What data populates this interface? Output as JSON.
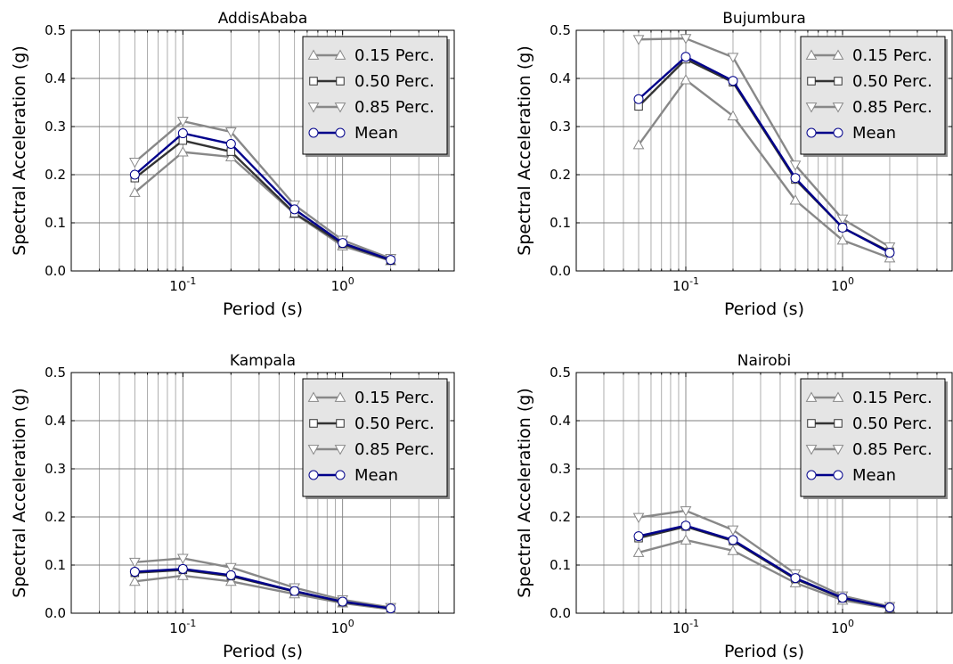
{
  "chart_data": [
    {
      "type": "line",
      "title": "AddisAbaba",
      "xlabel": "Period (s)",
      "ylabel": "Spectral Acceleration (g)",
      "xscale": "log",
      "xlim": [
        0.02,
        5
      ],
      "ylim": [
        0,
        0.5
      ],
      "yticks": [
        "0.0",
        "0.1",
        "0.2",
        "0.3",
        "0.4",
        "0.5"
      ],
      "xticks": [
        {
          "base": "10",
          "exp": "-1",
          "value": 0.1
        },
        {
          "base": "10",
          "exp": "0",
          "value": 1
        }
      ],
      "grid": true,
      "legend": "top-right",
      "x": [
        0.05,
        0.1,
        0.2,
        0.5,
        1.0,
        2.0
      ],
      "series": [
        {
          "name": "0.15 Perc.",
          "marker": "triangle-up",
          "color": "#888888",
          "values": [
            0.163,
            0.247,
            0.237,
            0.119,
            0.052,
            0.021
          ]
        },
        {
          "name": "0.50 Perc.",
          "marker": "square",
          "color": "#333333",
          "values": [
            0.193,
            0.271,
            0.248,
            0.12,
            0.056,
            0.022
          ]
        },
        {
          "name": "0.85 Perc.",
          "marker": "triangle-down",
          "color": "#888888",
          "values": [
            0.226,
            0.311,
            0.289,
            0.137,
            0.064,
            0.026
          ]
        },
        {
          "name": "Mean",
          "marker": "circle",
          "color": "#00008b",
          "values": [
            0.2,
            0.286,
            0.264,
            0.128,
            0.058,
            0.023
          ]
        }
      ]
    },
    {
      "type": "line",
      "title": "Bujumbura",
      "xlabel": "Period (s)",
      "ylabel": "Spectral Acceleration (g)",
      "xscale": "log",
      "xlim": [
        0.02,
        5
      ],
      "ylim": [
        0,
        0.5
      ],
      "yticks": [
        "0.0",
        "0.1",
        "0.2",
        "0.3",
        "0.4",
        "0.5"
      ],
      "xticks": [
        {
          "base": "10",
          "exp": "-1",
          "value": 0.1
        },
        {
          "base": "10",
          "exp": "0",
          "value": 1
        }
      ],
      "grid": true,
      "legend": "top-right",
      "x": [
        0.05,
        0.1,
        0.2,
        0.5,
        1.0,
        2.0
      ],
      "series": [
        {
          "name": "0.15 Perc.",
          "marker": "triangle-up",
          "color": "#888888",
          "values": [
            0.262,
            0.397,
            0.322,
            0.147,
            0.064,
            0.027
          ]
        },
        {
          "name": "0.50 Perc.",
          "marker": "square",
          "color": "#333333",
          "values": [
            0.342,
            0.44,
            0.392,
            0.19,
            0.09,
            0.04
          ]
        },
        {
          "name": "0.85 Perc.",
          "marker": "triangle-down",
          "color": "#888888",
          "values": [
            0.481,
            0.483,
            0.444,
            0.22,
            0.108,
            0.05
          ]
        },
        {
          "name": "Mean",
          "marker": "circle",
          "color": "#00008b",
          "values": [
            0.357,
            0.445,
            0.395,
            0.193,
            0.09,
            0.038
          ]
        }
      ]
    },
    {
      "type": "line",
      "title": "Kampala",
      "xlabel": "Period (s)",
      "ylabel": "Spectral Acceleration (g)",
      "xscale": "log",
      "xlim": [
        0.02,
        5
      ],
      "ylim": [
        0,
        0.5
      ],
      "yticks": [
        "0.0",
        "0.1",
        "0.2",
        "0.3",
        "0.4",
        "0.5"
      ],
      "xticks": [
        {
          "base": "10",
          "exp": "-1",
          "value": 0.1
        },
        {
          "base": "10",
          "exp": "0",
          "value": 1
        }
      ],
      "grid": true,
      "legend": "top-right",
      "x": [
        0.05,
        0.1,
        0.2,
        0.5,
        1.0,
        2.0
      ],
      "series": [
        {
          "name": "0.15 Perc.",
          "marker": "triangle-up",
          "color": "#888888",
          "values": [
            0.066,
            0.078,
            0.066,
            0.04,
            0.021,
            0.008
          ]
        },
        {
          "name": "0.50 Perc.",
          "marker": "square",
          "color": "#333333",
          "values": [
            0.084,
            0.09,
            0.077,
            0.045,
            0.023,
            0.01
          ]
        },
        {
          "name": "0.85 Perc.",
          "marker": "triangle-down",
          "color": "#888888",
          "values": [
            0.106,
            0.114,
            0.095,
            0.053,
            0.028,
            0.012
          ]
        },
        {
          "name": "Mean",
          "marker": "circle",
          "color": "#00008b",
          "values": [
            0.086,
            0.092,
            0.079,
            0.046,
            0.024,
            0.01
          ]
        }
      ]
    },
    {
      "type": "line",
      "title": "Nairobi",
      "xlabel": "Period (s)",
      "ylabel": "Spectral Acceleration (g)",
      "xscale": "log",
      "xlim": [
        0.02,
        5
      ],
      "ylim": [
        0,
        0.5
      ],
      "yticks": [
        "0.0",
        "0.1",
        "0.2",
        "0.3",
        "0.4",
        "0.5"
      ],
      "xticks": [
        {
          "base": "10",
          "exp": "-1",
          "value": 0.1
        },
        {
          "base": "10",
          "exp": "0",
          "value": 1
        }
      ],
      "grid": true,
      "legend": "top-right",
      "x": [
        0.05,
        0.1,
        0.2,
        0.5,
        1.0,
        2.0
      ],
      "series": [
        {
          "name": "0.15 Perc.",
          "marker": "triangle-up",
          "color": "#888888",
          "values": [
            0.126,
            0.152,
            0.13,
            0.063,
            0.027,
            0.01
          ]
        },
        {
          "name": "0.50 Perc.",
          "marker": "square",
          "color": "#333333",
          "values": [
            0.156,
            0.18,
            0.15,
            0.071,
            0.031,
            0.012
          ]
        },
        {
          "name": "0.85 Perc.",
          "marker": "triangle-down",
          "color": "#888888",
          "values": [
            0.199,
            0.213,
            0.173,
            0.082,
            0.036,
            0.014
          ]
        },
        {
          "name": "Mean",
          "marker": "circle",
          "color": "#00008b",
          "values": [
            0.16,
            0.182,
            0.152,
            0.073,
            0.032,
            0.012
          ]
        }
      ]
    }
  ]
}
